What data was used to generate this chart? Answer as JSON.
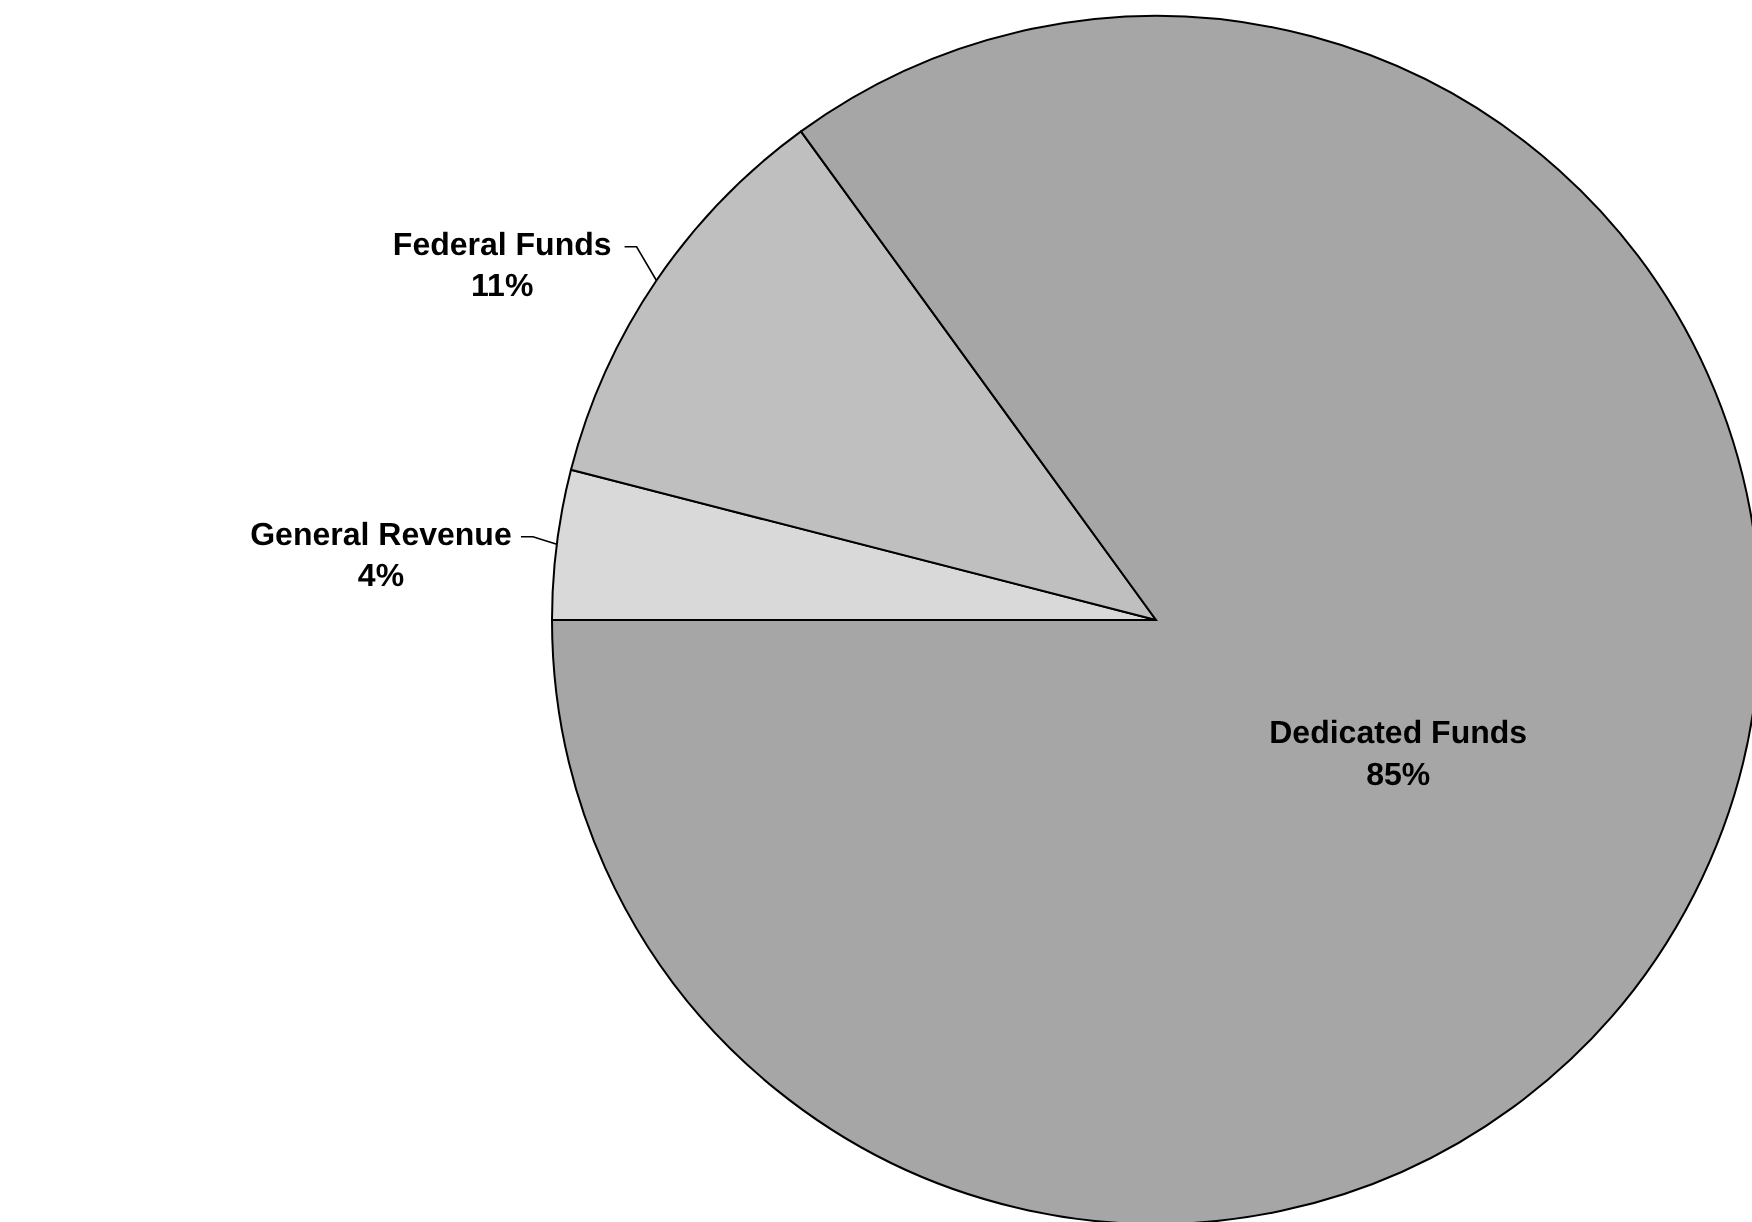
{
  "chart_data": {
    "type": "pie",
    "categories": [
      "General Revenue",
      "Federal Funds",
      "Dedicated Funds"
    ],
    "values": [
      4,
      11,
      85
    ],
    "colors": [
      "#d9d9d9",
      "#bfbfbf",
      "#a6a6a6"
    ],
    "value_labels": [
      "4%",
      "11%",
      "85%"
    ]
  }
}
